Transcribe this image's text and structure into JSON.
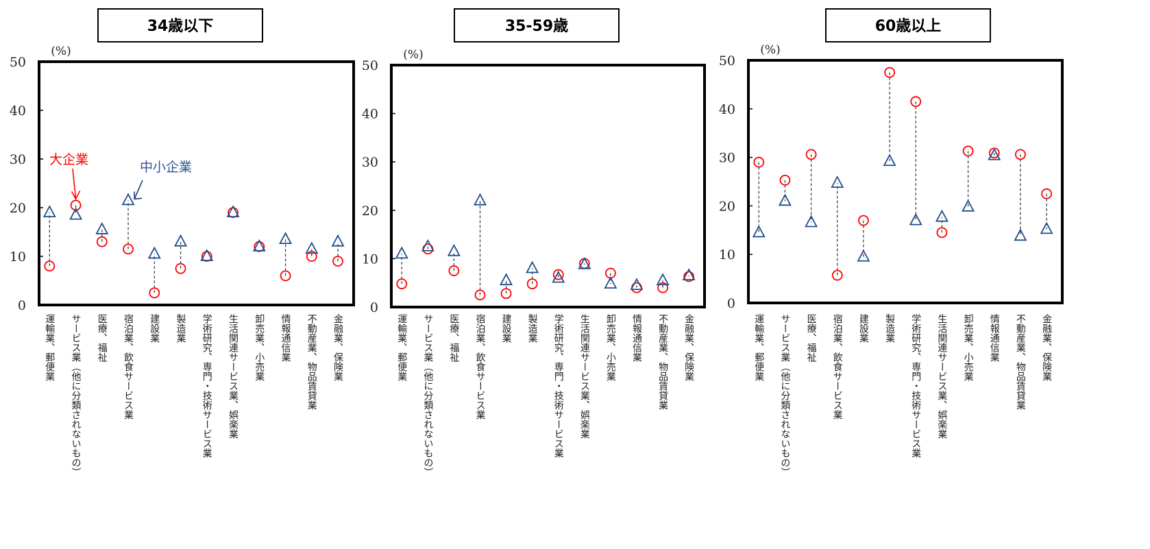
{
  "chart_data": [
    {
      "type": "scatter",
      "title": "34歳以下",
      "ylabel": "(%)",
      "ylim": [
        0,
        50
      ],
      "yticks": [
        "0",
        "10",
        "20",
        "30",
        "40",
        "50"
      ],
      "categories": [
        "運輸業、郵便業",
        "サービス業（他に分類されないもの）",
        "医療、福祉",
        "宿泊業、飲食サービス業",
        "建設業",
        "製造業",
        "学術研究、専門・技術サービス業",
        "生活関連サービス業、娯楽業",
        "卸売業、小売業",
        "情報通信業",
        "不動産業、物品賃貸業",
        "金融業、保険業"
      ],
      "series": [
        {
          "name": "大企業",
          "marker": "circle",
          "color": "#FF0000",
          "values": [
            8,
            20.5,
            13,
            11.5,
            2.5,
            7.5,
            10,
            19,
            12,
            6,
            10,
            9
          ]
        },
        {
          "name": "中小企業",
          "marker": "triangle",
          "color": "#1F4E8C",
          "values": [
            19,
            18.5,
            15.5,
            21.5,
            10.5,
            13,
            10,
            19,
            12,
            13.5,
            11.5,
            13
          ]
        }
      ],
      "annotations": [
        "大企業",
        "中小企業"
      ]
    },
    {
      "type": "scatter",
      "title": "35-59歳",
      "ylabel": "(%)",
      "ylim": [
        0,
        50
      ],
      "yticks": [
        "0",
        "10",
        "20",
        "30",
        "40",
        "50"
      ],
      "categories": [
        "運輸業、郵便業",
        "サービス業（他に分類されないもの）",
        "医療、福祉",
        "宿泊業、飲食サービス業",
        "建設業",
        "製造業",
        "学術研究、専門・技術サービス業",
        "生活関連サービス業、娯楽業",
        "卸売業、小売業",
        "情報通信業",
        "不動産業、物品賃貸業",
        "金融業、保険業"
      ],
      "series": [
        {
          "name": "大企業",
          "marker": "circle",
          "color": "#FF0000",
          "values": [
            4.8,
            12,
            7.5,
            2.5,
            2.8,
            4.8,
            6.7,
            9,
            7,
            4,
            4,
            6.3
          ]
        },
        {
          "name": "中小企業",
          "marker": "triangle",
          "color": "#1F4E8C",
          "values": [
            11,
            12.5,
            11.5,
            22,
            5.5,
            8,
            6,
            8.8,
            4.8,
            4.5,
            5.5,
            6.5
          ]
        }
      ]
    },
    {
      "type": "scatter",
      "title": "60歳以上",
      "ylabel": "(%)",
      "ylim": [
        0,
        50
      ],
      "yticks": [
        "0",
        "10",
        "20",
        "30",
        "40",
        "50"
      ],
      "categories": [
        "運輸業、郵便業",
        "サービス業（他に分類されないもの）",
        "医療、福祉",
        "宿泊業、飲食サービス業",
        "建設業",
        "製造業",
        "学術研究、専門・技術サービス業",
        "生活関連サービス業、娯楽業",
        "卸売業、小売業",
        "情報通信業",
        "不動産業、物品賃貸業",
        "金融業、保険業"
      ],
      "series": [
        {
          "name": "大企業",
          "marker": "circle",
          "color": "#FF0000",
          "values": [
            29,
            25.3,
            30.6,
            5.7,
            17,
            47.5,
            41.5,
            14.5,
            31.3,
            30.9,
            30.6,
            22.5
          ]
        },
        {
          "name": "中小企業",
          "marker": "triangle",
          "color": "#1F4E8C",
          "values": [
            14.5,
            21,
            16.6,
            24.7,
            9.5,
            29.2,
            17,
            17.7,
            19.8,
            30.4,
            13.8,
            15.2
          ]
        }
      ]
    }
  ]
}
